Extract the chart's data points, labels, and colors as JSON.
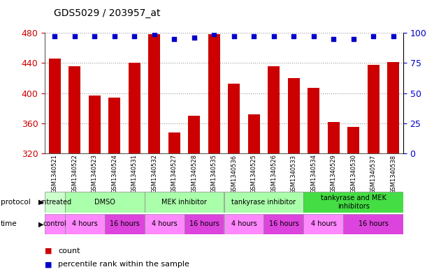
{
  "title": "GDS5029 / 203957_at",
  "samples": [
    "GSM1340521",
    "GSM1340522",
    "GSM1340523",
    "GSM1340524",
    "GSM1340531",
    "GSM1340532",
    "GSM1340527",
    "GSM1340528",
    "GSM1340535",
    "GSM1340536",
    "GSM1340525",
    "GSM1340526",
    "GSM1340533",
    "GSM1340534",
    "GSM1340529",
    "GSM1340530",
    "GSM1340537",
    "GSM1340538"
  ],
  "bar_values": [
    446,
    436,
    397,
    394,
    440,
    478,
    348,
    370,
    478,
    413,
    372,
    436,
    420,
    407,
    362,
    355,
    438,
    441
  ],
  "percentile_values": [
    97,
    97,
    97,
    97,
    97,
    99,
    95,
    96,
    99,
    97,
    97,
    97,
    97,
    97,
    95,
    95,
    97,
    97
  ],
  "ymin": 320,
  "ymax": 480,
  "yticks": [
    320,
    360,
    400,
    440,
    480
  ],
  "right_yticks": [
    0,
    25,
    50,
    75,
    100
  ],
  "bar_color": "#cc0000",
  "percentile_color": "#0000cc",
  "dot_size": 22,
  "protocol_groups": [
    {
      "label": "untreated",
      "start": 0,
      "end": 1,
      "color": "#ccffcc"
    },
    {
      "label": "DMSO",
      "start": 1,
      "end": 5,
      "color": "#aaffaa"
    },
    {
      "label": "MEK inhibitor",
      "start": 5,
      "end": 9,
      "color": "#aaffaa"
    },
    {
      "label": "tankyrase inhibitor",
      "start": 9,
      "end": 13,
      "color": "#aaffaa"
    },
    {
      "label": "tankyrase and MEK\ninhibitors",
      "start": 13,
      "end": 18,
      "color": "#44dd44"
    }
  ],
  "time_groups": [
    {
      "label": "control",
      "start": 0,
      "end": 1,
      "color": "#ff88ff"
    },
    {
      "label": "4 hours",
      "start": 1,
      "end": 3,
      "color": "#ff88ff"
    },
    {
      "label": "16 hours",
      "start": 3,
      "end": 5,
      "color": "#dd44dd"
    },
    {
      "label": "4 hours",
      "start": 5,
      "end": 7,
      "color": "#ff88ff"
    },
    {
      "label": "16 hours",
      "start": 7,
      "end": 9,
      "color": "#dd44dd"
    },
    {
      "label": "4 hours",
      "start": 9,
      "end": 11,
      "color": "#ff88ff"
    },
    {
      "label": "16 hours",
      "start": 11,
      "end": 13,
      "color": "#dd44dd"
    },
    {
      "label": "4 hours",
      "start": 13,
      "end": 15,
      "color": "#ff88ff"
    },
    {
      "label": "16 hours",
      "start": 15,
      "end": 18,
      "color": "#dd44dd"
    }
  ],
  "bg_color": "#ffffff",
  "grid_color": "#999999",
  "left_axis_color": "#cc0000",
  "right_axis_color": "#0000cc"
}
